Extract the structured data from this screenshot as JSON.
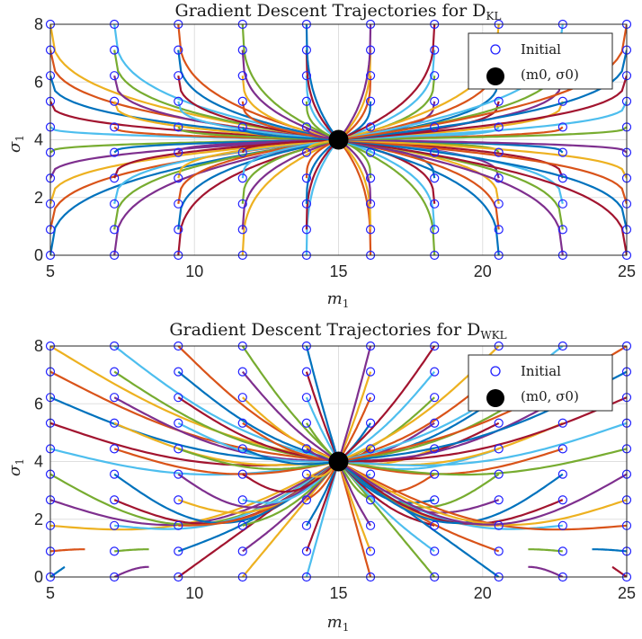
{
  "colors": [
    "#0072BD",
    "#D95319",
    "#EDB120",
    "#7E2F8E",
    "#77AC30",
    "#4DBEEE",
    "#A2142F"
  ],
  "marker_color": "#2020ff",
  "center_color": "#000000",
  "chart_data": [
    {
      "type": "line",
      "title": "Gradient Descent Trajectories for D",
      "title_subscript": "KL",
      "xlabel": "m",
      "xlabel_subscript": "1",
      "ylabel": "σ",
      "ylabel_subscript": "1",
      "xlim": [
        5,
        25
      ],
      "ylim": [
        0,
        8
      ],
      "xticks": [
        "5",
        "10",
        "15",
        "20",
        "25"
      ],
      "yticks": [
        "0",
        "2",
        "4",
        "6",
        "8"
      ],
      "grid": true,
      "legend_position": "top-right",
      "legend": [
        {
          "label": "Initial",
          "marker": "open-circle"
        },
        {
          "label": "(m0, σ0)",
          "marker": "filled-circle"
        }
      ],
      "center": {
        "x": 15,
        "y": 4
      },
      "initial_x": [
        5,
        7.22,
        9.44,
        11.67,
        13.89,
        16.11,
        18.33,
        20.56,
        22.78,
        25
      ],
      "initial_y": [
        0,
        0.89,
        1.78,
        2.67,
        3.56,
        4.44,
        5.33,
        6.22,
        7.11,
        8
      ],
      "trajectory_mode": "kl"
    },
    {
      "type": "line",
      "title": "Gradient Descent Trajectories for D",
      "title_subscript": "WKL",
      "xlabel": "m",
      "xlabel_subscript": "1",
      "ylabel": "σ",
      "ylabel_subscript": "1",
      "xlim": [
        5,
        25
      ],
      "ylim": [
        0,
        8
      ],
      "xticks": [
        "5",
        "10",
        "15",
        "20",
        "25"
      ],
      "yticks": [
        "0",
        "2",
        "4",
        "6",
        "8"
      ],
      "grid": true,
      "legend_position": "top-right",
      "legend": [
        {
          "label": "Initial",
          "marker": "open-circle"
        },
        {
          "label": "(m0, σ0)",
          "marker": "filled-circle"
        }
      ],
      "center": {
        "x": 15,
        "y": 4
      },
      "initial_x": [
        5,
        7.22,
        9.44,
        11.67,
        13.89,
        16.11,
        18.33,
        20.56,
        22.78,
        25
      ],
      "initial_y": [
        0,
        0.89,
        1.78,
        2.67,
        3.56,
        4.44,
        5.33,
        6.22,
        7.11,
        8
      ],
      "trajectory_mode": "wkl"
    }
  ]
}
